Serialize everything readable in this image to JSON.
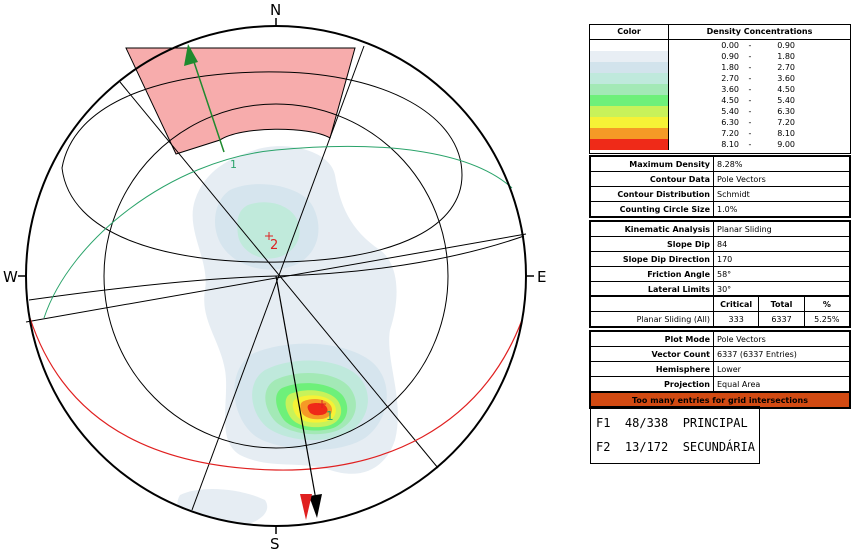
{
  "compass": {
    "n": "N",
    "s": "S",
    "e": "E",
    "w": "W"
  },
  "poles": {
    "set1_label": "1",
    "set2_label": "2",
    "plane1_label": "1"
  },
  "legend": {
    "header_color": "Color",
    "header_density": "Density Concentrations",
    "rows": [
      {
        "lo": "0.00",
        "hi": "0.90",
        "color": "#ffffff"
      },
      {
        "lo": "0.90",
        "hi": "1.80",
        "color": "#e8eef4"
      },
      {
        "lo": "1.80",
        "hi": "2.70",
        "color": "#d2e3ec"
      },
      {
        "lo": "2.70",
        "hi": "3.60",
        "color": "#bfe9dc"
      },
      {
        "lo": "3.60",
        "hi": "4.50",
        "color": "#a3e9b6"
      },
      {
        "lo": "4.50",
        "hi": "5.40",
        "color": "#6ef07a"
      },
      {
        "lo": "5.40",
        "hi": "6.30",
        "color": "#c8f25a"
      },
      {
        "lo": "6.30",
        "hi": "7.20",
        "color": "#f6f236"
      },
      {
        "lo": "7.20",
        "hi": "8.10",
        "color": "#f59a26"
      },
      {
        "lo": "8.10",
        "hi": "9.00",
        "color": "#ef2a18"
      }
    ],
    "dash": "-"
  },
  "contour": [
    {
      "label": "Maximum Density",
      "value": "8.28%"
    },
    {
      "label": "Contour Data",
      "value": "Pole Vectors"
    },
    {
      "label": "Contour Distribution",
      "value": "Schmidt"
    },
    {
      "label": "Counting Circle Size",
      "value": "1.0%"
    }
  ],
  "kinematic": [
    {
      "label": "Kinematic Analysis",
      "value": "Planar Sliding"
    },
    {
      "label": "Slope Dip",
      "value": "84"
    },
    {
      "label": "Slope Dip Direction",
      "value": "170"
    },
    {
      "label": "Friction Angle",
      "value": "58°"
    },
    {
      "label": "Lateral Limits",
      "value": "30°"
    }
  ],
  "results": {
    "col_critical": "Critical",
    "col_total": "Total",
    "col_pct": "%",
    "row_label": "Planar Sliding (All)",
    "critical": "333",
    "total": "6337",
    "pct": "5.25%"
  },
  "plot": [
    {
      "label": "Plot Mode",
      "value": "Pole Vectors"
    },
    {
      "label": "Vector Count",
      "value": "6337 (6337 Entries)"
    },
    {
      "label": "Hemisphere",
      "value": "Lower"
    },
    {
      "label": "Projection",
      "value": "Equal Area"
    }
  ],
  "warning": "Too many entries for grid intersections",
  "planes": [
    {
      "line": "F1  48/338  PRINCIPAL"
    },
    {
      "line": "F2  13/172  SECUNDÁRIA"
    }
  ]
}
